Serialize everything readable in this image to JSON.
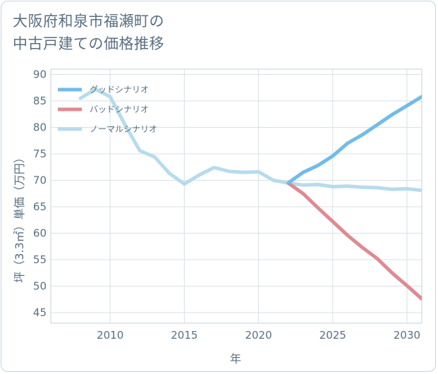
{
  "chart_data": {
    "type": "line",
    "title": [
      "大阪府和泉市福瀬町の",
      "中古戸建ての価格推移"
    ],
    "xlabel": "年",
    "ylabel": "坪（3.3㎡）単価（万円）",
    "xlim": [
      2006,
      2031
    ],
    "ylim": [
      43,
      91
    ],
    "xticks": [
      2010,
      2015,
      2020,
      2025,
      2030
    ],
    "yticks": [
      45,
      50,
      55,
      60,
      65,
      70,
      75,
      80,
      85,
      90
    ],
    "legend_position": "top-left",
    "series": [
      {
        "name": "グッドシナリオ",
        "color": "#72bbe9",
        "x": [
          2022,
          2023,
          2024,
          2025,
          2026,
          2027,
          2028,
          2029,
          2030,
          2031
        ],
        "y": [
          69.5,
          71.5,
          72.8,
          74.6,
          77.0,
          78.6,
          80.5,
          82.4,
          84.1,
          85.8
        ]
      },
      {
        "name": "バッドシナリオ",
        "color": "#df8a92",
        "x": [
          2022,
          2023,
          2024,
          2025,
          2026,
          2027,
          2028,
          2029,
          2030,
          2031
        ],
        "y": [
          69.5,
          67.5,
          64.8,
          62.2,
          59.6,
          57.3,
          55.2,
          52.5,
          50.1,
          47.6
        ]
      },
      {
        "name": "ノーマルシナリオ",
        "color": "#b6dcec",
        "x": [
          2008,
          2009,
          2010,
          2011,
          2012,
          2013,
          2014,
          2015,
          2016,
          2017,
          2018,
          2019,
          2020,
          2021,
          2022,
          2023,
          2024,
          2025,
          2026,
          2027,
          2028,
          2029,
          2030,
          2031
        ],
        "y": [
          85.5,
          87.2,
          85.8,
          80.5,
          75.6,
          74.4,
          71.3,
          69.3,
          71.0,
          72.4,
          71.7,
          71.5,
          71.6,
          70.0,
          69.5,
          69.1,
          69.2,
          68.8,
          68.9,
          68.7,
          68.6,
          68.3,
          68.4,
          68.1
        ]
      }
    ]
  }
}
